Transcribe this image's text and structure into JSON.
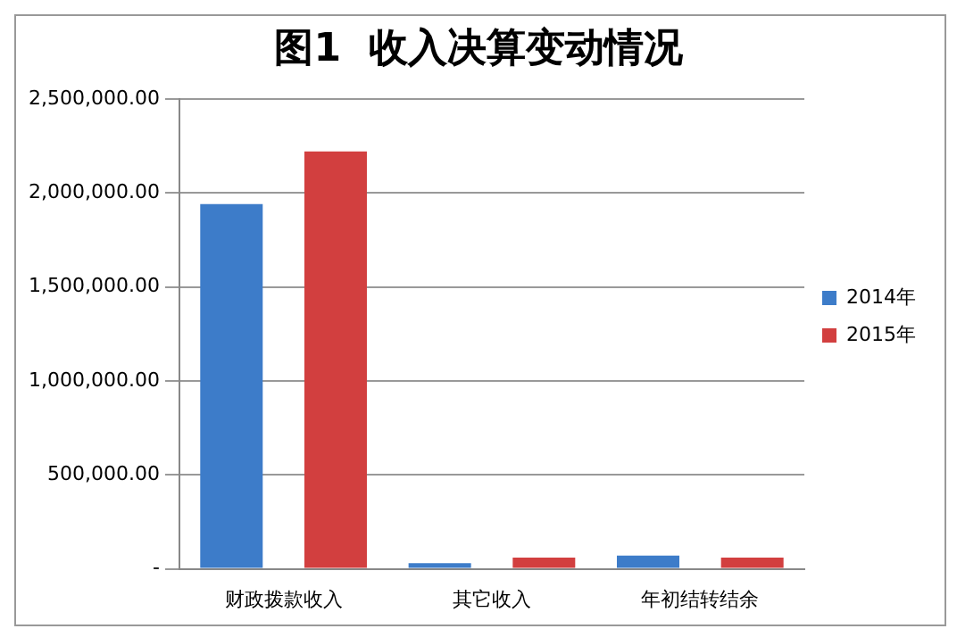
{
  "chart_data": {
    "type": "bar",
    "title": "图1  收入决算变动情况",
    "categories": [
      "财政拨款收入",
      "其它收入",
      "年初结转结余"
    ],
    "series": [
      {
        "name": "2014年",
        "color": "#3d7cc9",
        "values": [
          1940000,
          30000,
          70000
        ]
      },
      {
        "name": "2015年",
        "color": "#d23f3f",
        "values": [
          2220000,
          60000,
          60000
        ]
      }
    ],
    "ylim": [
      0,
      2500000
    ],
    "yticks": [
      {
        "value": 0,
        "label": "-"
      },
      {
        "value": 500000,
        "label": "500,000.00"
      },
      {
        "value": 1000000,
        "label": "1,000,000.00"
      },
      {
        "value": 1500000,
        "label": "1,500,000.00"
      },
      {
        "value": 2000000,
        "label": "2,000,000.00"
      },
      {
        "value": 2500000,
        "label": "2,500,000.00"
      }
    ],
    "grid": "y",
    "legend": "right"
  }
}
